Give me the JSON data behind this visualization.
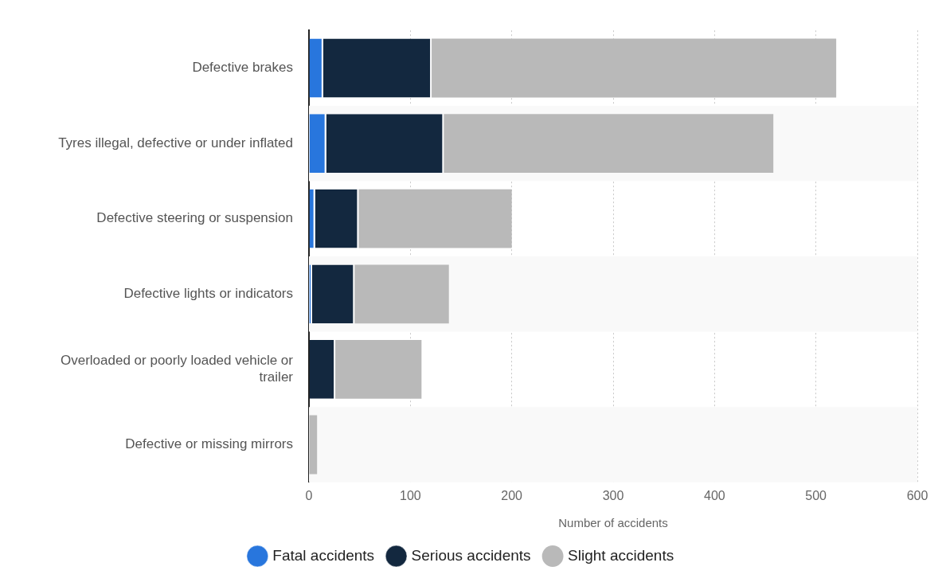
{
  "chart_data": {
    "type": "bar",
    "orientation": "horizontal",
    "stacked": true,
    "xlabel": "Number of accidents",
    "categories": [
      "Defective brakes",
      "Tyres illegal, defective or under inflated",
      "Defective steering or suspension",
      "Defective lights or indicators",
      "Overloaded or poorly loaded vehicle or trailer",
      "Defective or missing mirrors"
    ],
    "series": [
      {
        "name": "Fatal accidents",
        "color": "#2876dd",
        "values": [
          14,
          17,
          6,
          3,
          null,
          null
        ]
      },
      {
        "name": "Serious accidents",
        "color": "#13283f",
        "values": [
          107,
          116,
          43,
          42,
          26,
          null
        ]
      },
      {
        "name": "Slight accidents",
        "color": "#b9b9b9",
        "values": [
          399,
          325,
          151,
          93,
          85,
          8
        ]
      }
    ],
    "xlim": [
      0,
      600
    ],
    "xticks": [
      0,
      100,
      200,
      300,
      400,
      500,
      600
    ],
    "grid": "x",
    "legend": "bottom"
  }
}
